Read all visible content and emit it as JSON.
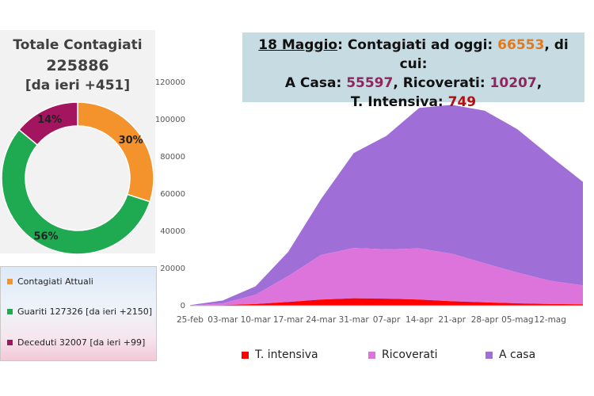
{
  "summary": {
    "title": "Totale Contagiati",
    "total": "225886",
    "delta": "[da ieri +451]"
  },
  "banner": {
    "date": "18 Maggio",
    "l1_label": ": Contagiati ad oggi: ",
    "l1_value": "66553",
    "l1_suffix": ", di cui:",
    "casa_label": "A Casa: ",
    "casa_value": "55597",
    "ric_label": ", Ricoverati: ",
    "ric_value": "10207",
    "ric_suffix": ",",
    "ti_label": "T. Intensiva: ",
    "ti_value": "749"
  },
  "donut_legend": {
    "attuali": "Contagiati Attuali",
    "guariti": "Guariti 127326 [da ieri +2150]",
    "deceduti": "Deceduti 32007 [da ieri +99]"
  },
  "colors": {
    "attuali": "#f4922b",
    "guariti": "#1faa52",
    "deceduti": "#a3155e",
    "intensiva": "#ff0000",
    "ricoverati": "#dc74dc",
    "casa": "#9f6ed6"
  },
  "chart_data": [
    {
      "type": "pie",
      "labels": [
        "Contagiati Attuali",
        "Guariti",
        "Deceduti"
      ],
      "values": [
        30,
        56,
        14
      ],
      "data_labels": [
        "30%",
        "56%",
        "14%"
      ]
    },
    {
      "type": "area",
      "stacked": true,
      "x": [
        "25-feb",
        "03-mar",
        "10-mar",
        "17-mar",
        "24-mar",
        "31-mar",
        "07-apr",
        "14-apr",
        "21-apr",
        "28-apr",
        "05-mag",
        "12-mag",
        "18-mag"
      ],
      "x_tick_labels": [
        "25-feb",
        "03-mar",
        "10-mar",
        "17-mar",
        "24-mar",
        "31-mar",
        "07-apr",
        "14-apr",
        "21-apr",
        "28-apr",
        "05-mag",
        "12-mag"
      ],
      "ylim": [
        0,
        120000
      ],
      "y_ticks": [
        "0",
        "20000",
        "40000",
        "60000",
        "80000",
        "100000",
        "120000"
      ],
      "series": [
        {
          "name": "T. intensiva",
          "values": [
            30,
            300,
            900,
            2000,
            3300,
            4000,
            3800,
            3300,
            2400,
            1800,
            1300,
            900,
            749
          ]
        },
        {
          "name": "Ricoverati",
          "values": [
            100,
            1000,
            5000,
            14000,
            24000,
            27000,
            26500,
            27500,
            25500,
            21000,
            16500,
            12500,
            10207
          ]
        },
        {
          "name": "A casa",
          "values": [
            200,
            1500,
            4500,
            13000,
            30000,
            51000,
            61000,
            75500,
            80000,
            82000,
            77000,
            67000,
            55597
          ]
        }
      ],
      "legend": {
        "position": "bottom",
        "entries": [
          "T. intensiva",
          "Ricoverati",
          "A casa"
        ]
      },
      "grid": false
    }
  ]
}
